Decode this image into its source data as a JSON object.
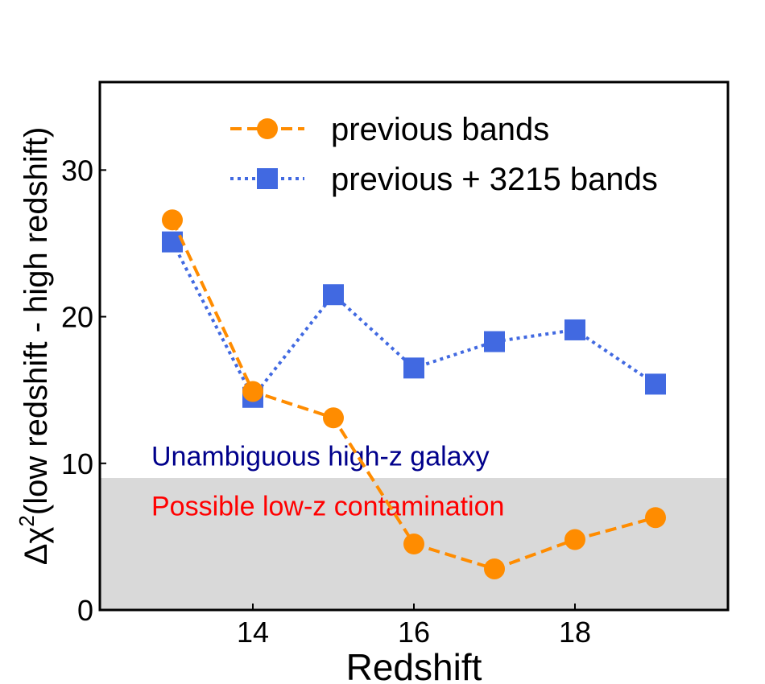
{
  "chart_data": {
    "type": "line",
    "title": "",
    "xlabel": "Redshift",
    "ylabel_symbol": "Δχ",
    "ylabel_superscript": "2",
    "ylabel_text": "(low redshift - high redshift)",
    "xlim": [
      12.1,
      19.9
    ],
    "ylim": [
      0,
      36
    ],
    "xticks": [
      14,
      16,
      18
    ],
    "yticks": [
      0,
      10,
      20,
      30
    ],
    "xtick_labels": [
      "14",
      "16",
      "18"
    ],
    "ytick_labels": [
      "0",
      "10",
      "20",
      "30"
    ],
    "grid": false,
    "legend_position": "top-right",
    "threshold": 9,
    "x": [
      13,
      14,
      15,
      16,
      17,
      18,
      19
    ],
    "series": [
      {
        "name": "previous bands",
        "values": [
          26.6,
          14.9,
          13.1,
          4.5,
          2.8,
          4.8,
          6.3
        ],
        "color": "#ff8c00",
        "marker": "circle",
        "linestyle": "dashed"
      },
      {
        "name": "previous + 3215 bands",
        "values": [
          25.1,
          14.5,
          21.5,
          16.5,
          18.3,
          19.1,
          15.4
        ],
        "color": "#4169e1",
        "marker": "square",
        "linestyle": "dotted"
      }
    ],
    "annotations": [
      {
        "text": "Unambiguous high-z galaxy",
        "color": "#00008b"
      },
      {
        "text": "Possible low-z contamination",
        "color": "#ff0000"
      }
    ],
    "shade_color": "#d9d9d9"
  }
}
